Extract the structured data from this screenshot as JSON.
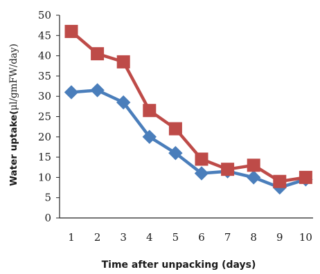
{
  "chart_data": {
    "type": "line",
    "title": "",
    "xlabel": "Time after unpacking (days)",
    "ylabel_prefix": "Water uptake(",
    "ylabel_mu": "μ",
    "ylabel_suffix": "l/gmFW/day)",
    "x": [
      1,
      2,
      3,
      4,
      5,
      6,
      7,
      8,
      9,
      10
    ],
    "ylim": [
      0,
      50
    ],
    "yticks": [
      0,
      5,
      10,
      15,
      20,
      25,
      30,
      35,
      40,
      45,
      50
    ],
    "grid": false,
    "legend": "none",
    "series": [
      {
        "color": "#4a7ebb",
        "marker": "diamond",
        "values": [
          31,
          31.5,
          28.5,
          20,
          16,
          11,
          11.5,
          10,
          7.5,
          9.5
        ]
      },
      {
        "color": "#be4b48",
        "marker": "square",
        "values": [
          46,
          40.5,
          38.5,
          26.5,
          22,
          14.5,
          12,
          13,
          9,
          10
        ]
      }
    ]
  }
}
